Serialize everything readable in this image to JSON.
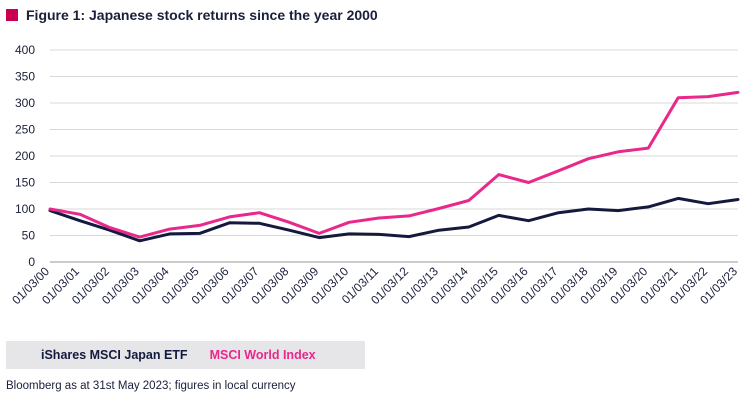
{
  "title": "Figure 1: Japanese stock returns since the year 2000",
  "accent_color": "#c8004f",
  "footnote": "Bloomberg as at 31st May 2023; figures in local currency",
  "chart_data": {
    "type": "line",
    "title": "Figure 1: Japanese stock returns since the year 2000",
    "xlabel": "",
    "ylabel": "",
    "ylim": [
      0,
      400
    ],
    "y_ticks": [
      "0",
      "50",
      "100",
      "150",
      "200",
      "250",
      "300",
      "350",
      "400"
    ],
    "grid": true,
    "legend_position": "bottom-left",
    "x": [
      "01/03/00",
      "01/03/01",
      "01/03/02",
      "01/03/03",
      "01/03/04",
      "01/03/05",
      "01/03/06",
      "01/03/07",
      "01/03/08",
      "01/03/09",
      "01/03/10",
      "01/03/11",
      "01/03/12",
      "01/03/13",
      "01/03/14",
      "01/03/15",
      "01/03/16",
      "01/03/17",
      "01/03/18",
      "01/03/19",
      "01/03/20",
      "01/03/21",
      "01/03/22",
      "01/03/23"
    ],
    "series": [
      {
        "name": "iShares MSCI Japan ETF",
        "color": "#141a3d",
        "values": [
          97,
          78,
          60,
          40,
          53,
          54,
          74,
          73,
          60,
          46,
          53,
          52,
          48,
          60,
          66,
          88,
          78,
          93,
          100,
          97,
          104,
          120,
          110,
          118
        ]
      },
      {
        "name": "MSCI World Index",
        "color": "#e8288a",
        "values": [
          100,
          90,
          65,
          47,
          62,
          69,
          85,
          93,
          75,
          54,
          75,
          83,
          87,
          101,
          116,
          165,
          150,
          172,
          195,
          208,
          215,
          310,
          312,
          320
        ]
      }
    ]
  }
}
